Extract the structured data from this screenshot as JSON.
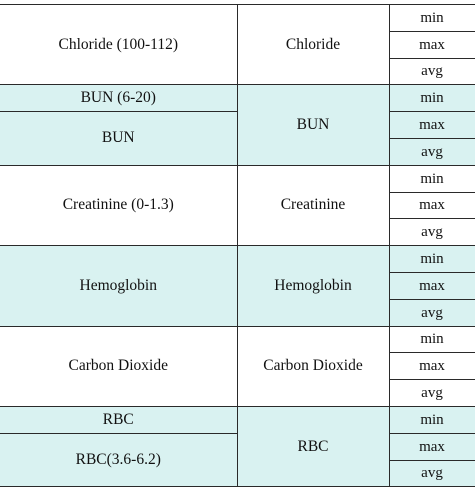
{
  "rows": [
    {
      "label_col": [
        "Chloride (100-112)"
      ],
      "name": "Chloride",
      "stats": [
        "min",
        "max",
        "avg"
      ],
      "shaded": false
    },
    {
      "label_col": [
        "BUN (6-20)",
        "BUN"
      ],
      "name": "BUN",
      "stats": [
        "min",
        "max",
        "avg"
      ],
      "shaded": true
    },
    {
      "label_col": [
        "Creatinine (0-1.3)"
      ],
      "name": "Creatinine",
      "stats": [
        "min",
        "max",
        "avg"
      ],
      "shaded": false
    },
    {
      "label_col": [
        "Hemoglobin"
      ],
      "name": "Hemoglobin",
      "stats": [
        "min",
        "max",
        "avg"
      ],
      "shaded": true
    },
    {
      "label_col": [
        "Carbon Dioxide"
      ],
      "name": "Carbon Dioxide",
      "stats": [
        "min",
        "max",
        "avg"
      ],
      "shaded": false
    },
    {
      "label_col": [
        "RBC",
        "RBC(3.6-6.2)"
      ],
      "name": "RBC",
      "stats": [
        "min",
        "max",
        "avg"
      ],
      "shaded": true
    }
  ],
  "colors": {
    "shade": "#d9f2f1",
    "border": "#2a2a2a",
    "text": "#111111"
  }
}
